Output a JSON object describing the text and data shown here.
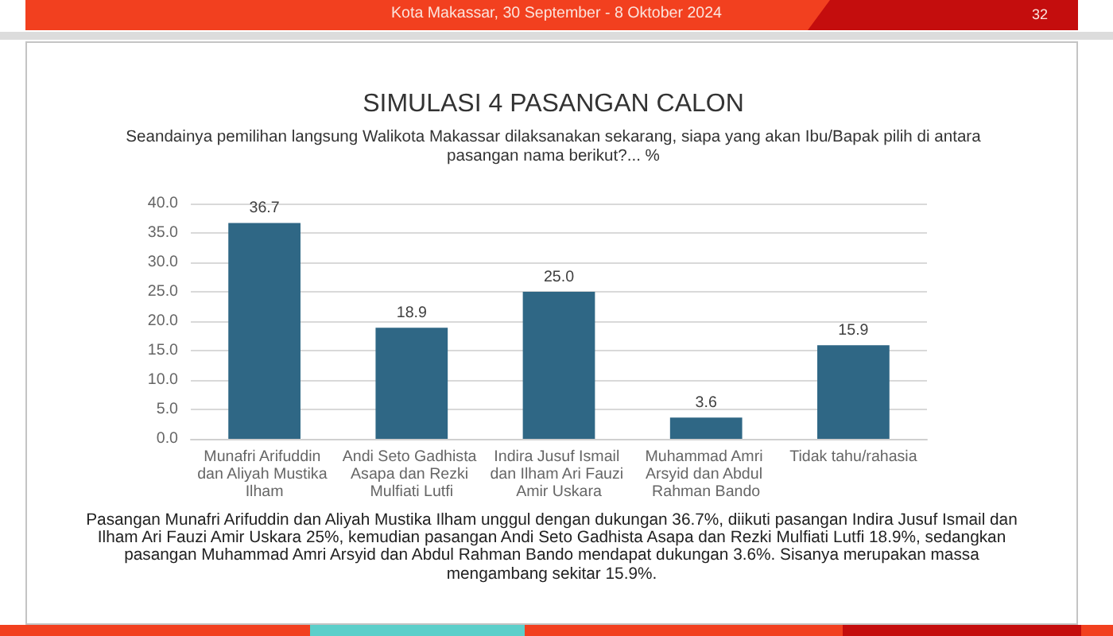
{
  "chart_data": {
    "type": "bar",
    "title": "SIMULASI 4 PASANGAN CALON",
    "subtitle": "Seandainya pemilihan langsung Walikota Makassar dilaksanakan sekarang, siapa yang akan Ibu/Bapak pilih di antara pasangan nama berikut?... %",
    "categories": [
      "Munafri Arifuddin dan Aliyah Mustika Ilham",
      "Andi Seto Gadhista Asapa dan Rezki Mulfiati Lutfi",
      "Indira Jusuf Ismail dan Ilham Ari Fauzi Amir Uskara",
      "Muhammad Amri Arsyid dan Abdul Rahman Bando",
      "Tidak tahu/rahasia"
    ],
    "values": [
      36.7,
      18.9,
      25.0,
      3.6,
      15.9
    ],
    "color": "#2f6785",
    "value_labels": [
      "36.7",
      "18.9",
      "25.0",
      "3.6",
      "15.9"
    ],
    "ylim": [
      0,
      40
    ],
    "yticks": [
      {
        "value": 0,
        "label": "0.0"
      },
      {
        "value": 5,
        "label": "5.0"
      },
      {
        "value": 10,
        "label": "10.0"
      },
      {
        "value": 15,
        "label": "15.0"
      },
      {
        "value": 20,
        "label": "20.0"
      },
      {
        "value": 25,
        "label": "25.0"
      },
      {
        "value": 30,
        "label": "30.0"
      },
      {
        "value": 35,
        "label": "35.0"
      },
      {
        "value": 40,
        "label": "40.0"
      }
    ],
    "grid": "y",
    "annotations": [
      "Kota Makassar, 30 September - 8 Oktober 2024",
      "32",
      "Pasangan Munafri Arifuddin dan Aliyah Mustika Ilham unggul dengan dukungan 36.7%, diikuti pasangan Indira Jusuf Ismail dan Ilham Ari Fauzi Amir Uskara 25%, kemudian pasangan Andi Seto Gadhista Asapa dan Rezki Mulfiati Lutfi 18.9%, sedangkan pasangan Muhammad Amri Arsyid dan Abdul Rahman Bando mendapat dukungan 3.6%. Sisanya merupakan massa mengambang sekitar 15.9%."
    ]
  }
}
